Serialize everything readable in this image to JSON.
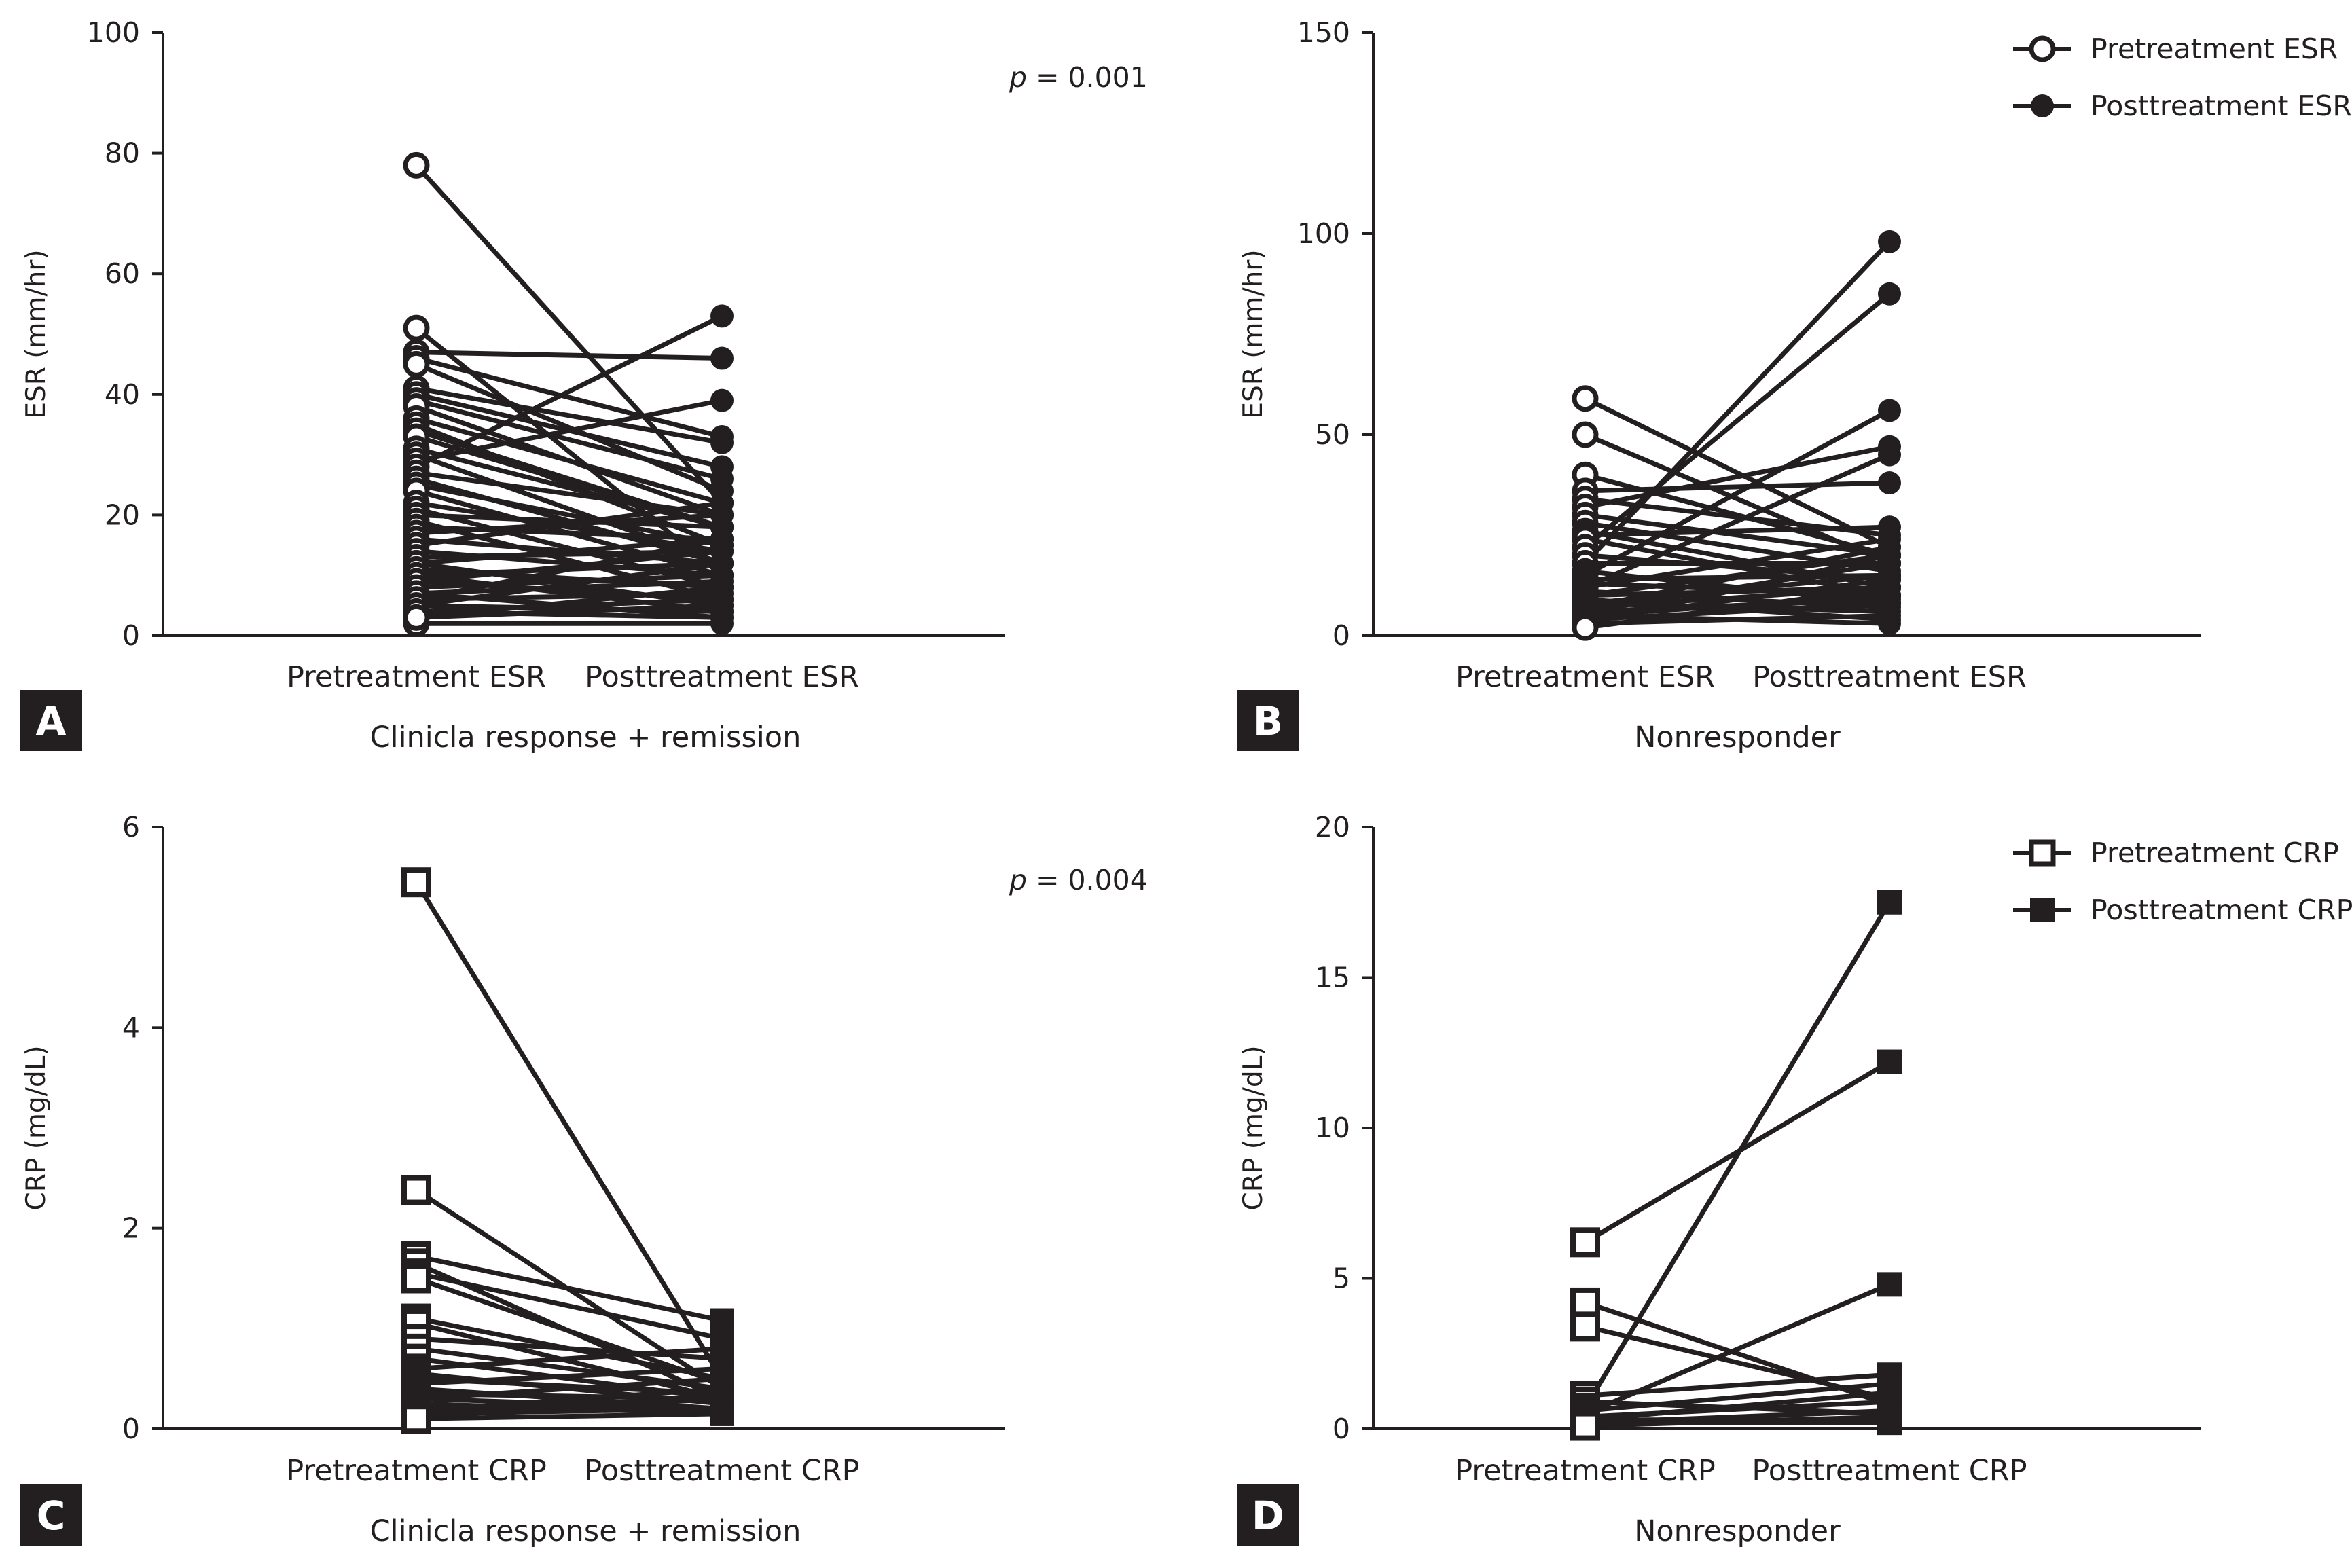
{
  "chart_data": [
    {
      "panel": "A",
      "type": "line",
      "marker": "circle",
      "categories": [
        "Pretreatment ESR",
        "Posttreatment ESR"
      ],
      "ylabel": "ESR (mm/hr)",
      "xlabel": "Clinicla response + remission",
      "ylim": [
        0,
        100
      ],
      "yticks": [
        0,
        20,
        40,
        60,
        80,
        100
      ],
      "p_prefix": "p",
      "p_value": " = 0.001",
      "pairs": [
        [
          78,
          22
        ],
        [
          51,
          10
        ],
        [
          47,
          46
        ],
        [
          46,
          33
        ],
        [
          45,
          24
        ],
        [
          41,
          32
        ],
        [
          40,
          28
        ],
        [
          39,
          26
        ],
        [
          38,
          20
        ],
        [
          36,
          22
        ],
        [
          35,
          15
        ],
        [
          34,
          18
        ],
        [
          33,
          18
        ],
        [
          31,
          18
        ],
        [
          30,
          12
        ],
        [
          29,
          39
        ],
        [
          28,
          53
        ],
        [
          27,
          20
        ],
        [
          26,
          12
        ],
        [
          25,
          15
        ],
        [
          24,
          10
        ],
        [
          22,
          14
        ],
        [
          21,
          8
        ],
        [
          20,
          18
        ],
        [
          19,
          6
        ],
        [
          18,
          16
        ],
        [
          17,
          20
        ],
        [
          16,
          12
        ],
        [
          15,
          22
        ],
        [
          14,
          10
        ],
        [
          13,
          14
        ],
        [
          12,
          5
        ],
        [
          12,
          16
        ],
        [
          11,
          8
        ],
        [
          10,
          12
        ],
        [
          10,
          4
        ],
        [
          9,
          14
        ],
        [
          9,
          6
        ],
        [
          8,
          10
        ],
        [
          7,
          9
        ],
        [
          7,
          3
        ],
        [
          6,
          16
        ],
        [
          6,
          7
        ],
        [
          5,
          4
        ],
        [
          5,
          12
        ],
        [
          4,
          3
        ],
        [
          4,
          6
        ],
        [
          3,
          5
        ],
        [
          2,
          2
        ],
        [
          3,
          8
        ]
      ]
    },
    {
      "panel": "B",
      "type": "line",
      "marker": "circle",
      "categories": [
        "Pretreatment ESR",
        "Posttreatment ESR"
      ],
      "ylabel": "ESR (mm/hr)",
      "xlabel": "Nonresponder",
      "ylim": [
        0,
        150
      ],
      "yticks": [
        0,
        50,
        100,
        150
      ],
      "legend": [
        "Pretreatment ESR",
        "Posttreatment ESR"
      ],
      "pairs": [
        [
          59,
          22
        ],
        [
          50,
          18
        ],
        [
          40,
          20
        ],
        [
          36,
          38
        ],
        [
          34,
          25
        ],
        [
          32,
          47
        ],
        [
          30,
          20
        ],
        [
          28,
          16
        ],
        [
          26,
          12
        ],
        [
          25,
          27
        ],
        [
          24,
          10
        ],
        [
          22,
          85
        ],
        [
          20,
          14
        ],
        [
          18,
          98
        ],
        [
          18,
          18
        ],
        [
          16,
          8
        ],
        [
          15,
          56
        ],
        [
          14,
          15
        ],
        [
          13,
          10
        ],
        [
          12,
          45
        ],
        [
          12,
          24
        ],
        [
          11,
          7
        ],
        [
          10,
          20
        ],
        [
          10,
          12
        ],
        [
          9,
          4
        ],
        [
          8,
          15
        ],
        [
          8,
          6
        ],
        [
          7,
          12
        ],
        [
          7,
          22
        ],
        [
          6,
          9
        ],
        [
          6,
          18
        ],
        [
          5,
          3
        ],
        [
          5,
          10
        ],
        [
          4,
          8
        ],
        [
          4,
          14
        ],
        [
          3,
          5
        ],
        [
          3,
          20
        ],
        [
          2,
          12
        ]
      ]
    },
    {
      "panel": "C",
      "type": "line",
      "marker": "square",
      "categories": [
        "Pretreatment CRP",
        "Posttreatment CRP"
      ],
      "ylabel": "CRP (mg/dL)",
      "xlabel": "Clinicla response + remission",
      "ylim": [
        0,
        6
      ],
      "yticks": [
        0,
        2,
        4,
        6
      ],
      "p_prefix": "p",
      "p_value": " = 0.004",
      "pairs": [
        [
          5.45,
          0.5
        ],
        [
          2.38,
          0.4
        ],
        [
          1.72,
          1.08
        ],
        [
          1.65,
          0.3
        ],
        [
          1.55,
          0.9
        ],
        [
          1.5,
          0.45
        ],
        [
          1.1,
          0.5
        ],
        [
          1.05,
          0.3
        ],
        [
          0.9,
          0.7
        ],
        [
          0.8,
          0.4
        ],
        [
          0.7,
          0.3
        ],
        [
          0.6,
          0.8
        ],
        [
          0.55,
          0.25
        ],
        [
          0.5,
          0.35
        ],
        [
          0.45,
          0.6
        ],
        [
          0.4,
          0.2
        ],
        [
          0.35,
          0.3
        ],
        [
          0.3,
          0.2
        ],
        [
          0.3,
          0.5
        ],
        [
          0.25,
          0.15
        ],
        [
          0.2,
          0.3
        ],
        [
          0.2,
          0.2
        ],
        [
          0.18,
          0.4
        ],
        [
          0.15,
          0.2
        ],
        [
          0.12,
          0.3
        ],
        [
          0.1,
          0.15
        ]
      ]
    },
    {
      "panel": "D",
      "type": "line",
      "marker": "square",
      "categories": [
        "Pretreatment CRP",
        "Posttreatment CRP"
      ],
      "ylabel": "CRP (mg/dL)",
      "xlabel": "Nonresponder",
      "ylim": [
        0,
        20
      ],
      "yticks": [
        0,
        5,
        10,
        15,
        20
      ],
      "legend": [
        "Pretreatment CRP",
        "Posttreatment CRP"
      ],
      "pairs": [
        [
          6.2,
          12.2
        ],
        [
          4.2,
          0.8
        ],
        [
          3.4,
          1.0
        ],
        [
          1.1,
          1.8
        ],
        [
          0.9,
          0.5
        ],
        [
          0.7,
          17.5
        ],
        [
          0.6,
          1.5
        ],
        [
          0.5,
          4.8
        ],
        [
          0.4,
          0.9
        ],
        [
          0.3,
          0.3
        ],
        [
          0.3,
          1.2
        ],
        [
          0.2,
          0.6
        ],
        [
          0.2,
          0.2
        ],
        [
          0.1,
          0.4
        ]
      ]
    }
  ],
  "panels": {
    "a": {
      "letter": "A",
      "xtitle": "Clinicla response + remission",
      "ylabel": "ESR (mm/hr)",
      "cat1": "Pretreatment ESR",
      "cat2": "Posttreatment ESR",
      "p_prefix": "p",
      "p_value": " = 0.001"
    },
    "b": {
      "letter": "B",
      "xtitle": "Nonresponder",
      "ylabel": "ESR (mm/hr)",
      "cat1": "Pretreatment ESR",
      "cat2": "Posttreatment ESR",
      "legend1": "Pretreatment ESR",
      "legend2": "Posttreatment ESR"
    },
    "c": {
      "letter": "C",
      "xtitle": "Clinicla response + remission",
      "ylabel": "CRP (mg/dL)",
      "cat1": "Pretreatment CRP",
      "cat2": "Posttreatment CRP",
      "p_prefix": "p",
      "p_value": " = 0.004"
    },
    "d": {
      "letter": "D",
      "xtitle": "Nonresponder",
      "ylabel": "CRP (mg/dL)",
      "cat1": "Pretreatment CRP",
      "cat2": "Posttreatment CRP",
      "legend1": "Pretreatment CRP",
      "legend2": "Posttreatment CRP"
    }
  },
  "colors": {
    "ink": "#231f20",
    "background": "#ffffff"
  }
}
